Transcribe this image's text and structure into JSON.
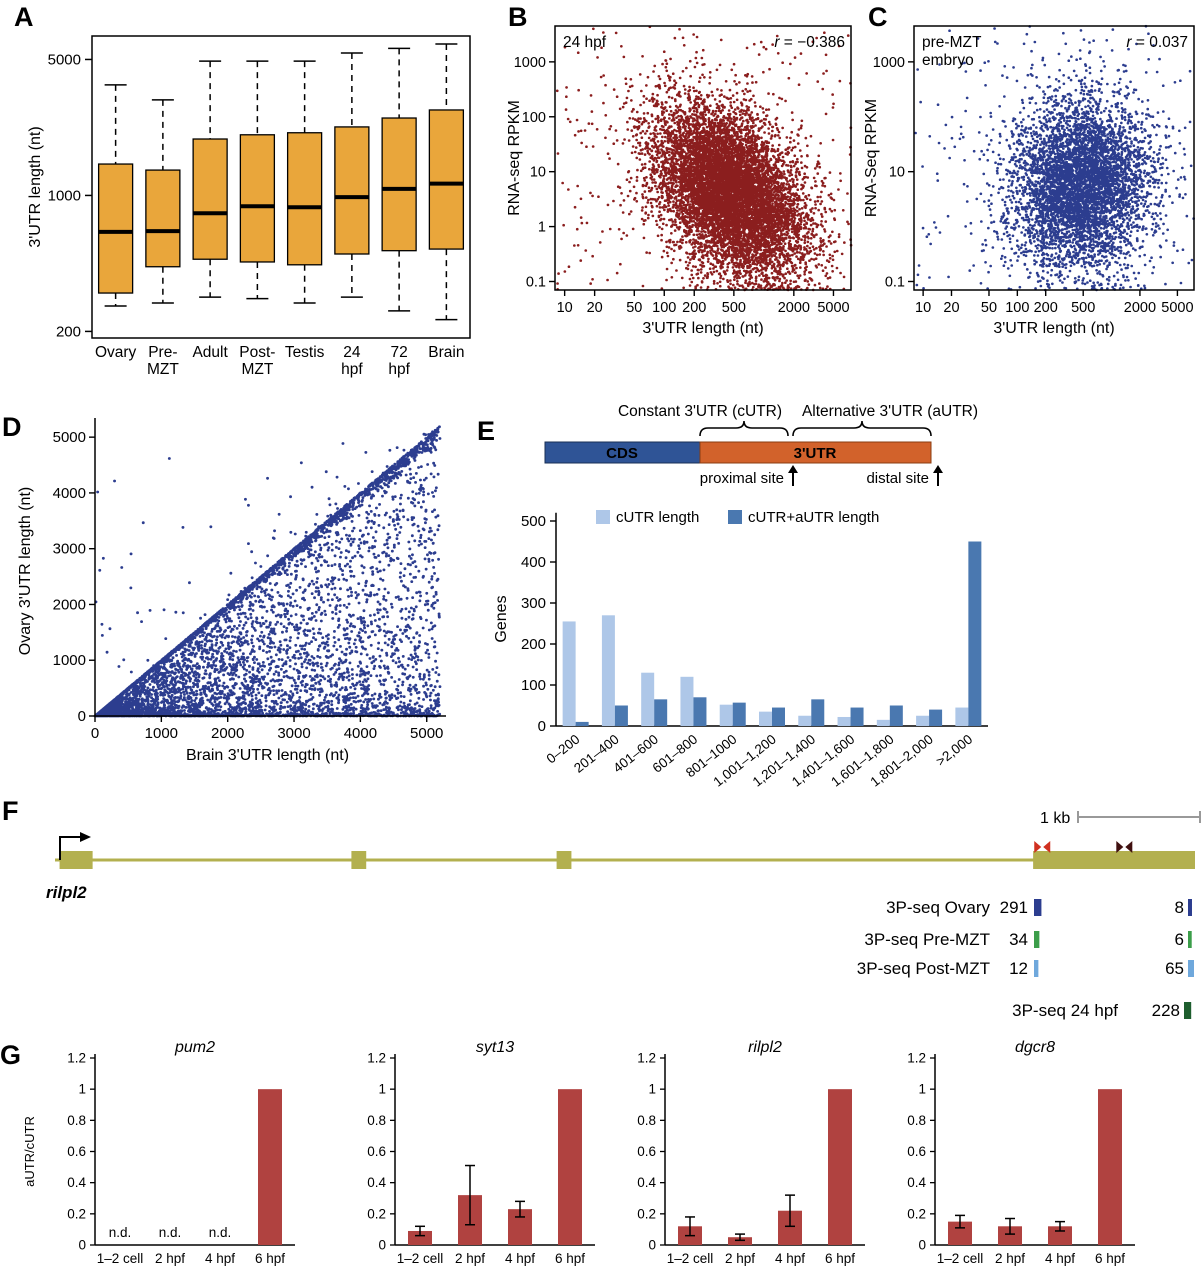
{
  "figure": {
    "background": "#ffffff",
    "panel_labels": [
      "A",
      "B",
      "C",
      "D",
      "E",
      "F",
      "G"
    ]
  },
  "chart_data": [
    {
      "id": "A",
      "type": "boxplot",
      "ylabel": "3'UTR length (nt)",
      "yscale": "log",
      "ylim": [
        185,
        6600
      ],
      "yticks": [
        200,
        1000,
        5000
      ],
      "box_color": "#E9A63B",
      "categories": [
        [
          "Ovary"
        ],
        [
          "Pre-",
          "MZT"
        ],
        [
          "Adult"
        ],
        [
          "Post-",
          "MZT"
        ],
        [
          "Testis"
        ],
        [
          "24",
          "hpf"
        ],
        [
          "72",
          "hpf"
        ],
        [
          "Brain"
        ]
      ],
      "boxes": [
        {
          "whislo": 270,
          "q1": 315,
          "med": 650,
          "q3": 1450,
          "whishi": 3700
        },
        {
          "whislo": 280,
          "q1": 430,
          "med": 655,
          "q3": 1350,
          "whishi": 3100
        },
        {
          "whislo": 300,
          "q1": 470,
          "med": 810,
          "q3": 1950,
          "whishi": 4900
        },
        {
          "whislo": 295,
          "q1": 455,
          "med": 880,
          "q3": 2050,
          "whishi": 4900
        },
        {
          "whislo": 280,
          "q1": 440,
          "med": 870,
          "q3": 2100,
          "whishi": 4900
        },
        {
          "whislo": 300,
          "q1": 500,
          "med": 980,
          "q3": 2250,
          "whishi": 5400
        },
        {
          "whislo": 255,
          "q1": 520,
          "med": 1080,
          "q3": 2500,
          "whishi": 5700
        },
        {
          "whislo": 230,
          "q1": 530,
          "med": 1150,
          "q3": 2750,
          "whishi": 6000
        }
      ]
    },
    {
      "id": "B",
      "type": "scatter",
      "annotation_lines": [
        "24 hpf"
      ],
      "r_var": "r",
      "r_value": " = −0.386",
      "xlabel": "3'UTR length (nt)",
      "ylabel": "RNA-seq RPKM",
      "xscale": "log",
      "yscale": "log",
      "xlim": [
        8,
        7500
      ],
      "ylim": [
        0.07,
        4500
      ],
      "xticks": [
        10,
        20,
        50,
        100,
        200,
        500,
        2000,
        5000
      ],
      "yticks": [
        0.1,
        1,
        10,
        100,
        1000
      ],
      "point_color": "#8B1E1E",
      "n_points": 9000,
      "distribution": {
        "log10x_mean": 2.67,
        "log10x_sd": 0.37,
        "log10y_mean": 0.62,
        "log10y_sd": 0.78,
        "r": -0.386,
        "seed": 7
      }
    },
    {
      "id": "C",
      "type": "scatter",
      "annotation_lines": [
        "pre-MZT",
        "embryo"
      ],
      "r_var": "r",
      "r_value": " = 0.037",
      "xlabel": "3'UTR length (nt)",
      "ylabel": "RNA-Seq RPKM",
      "xscale": "log",
      "yscale": "log",
      "xlim": [
        8,
        7500
      ],
      "ylim": [
        0.07,
        4500
      ],
      "xticks": [
        10,
        20,
        50,
        100,
        200,
        500,
        2000,
        5000
      ],
      "yticks": [
        0.1,
        10,
        1000
      ],
      "point_color": "#2C3D8F",
      "n_points": 5500,
      "distribution": {
        "log10x_mean": 2.67,
        "log10x_sd": 0.37,
        "log10y_mean": 0.75,
        "log10y_sd": 0.78,
        "r": 0.037,
        "seed": 13
      }
    },
    {
      "id": "D",
      "type": "scatter",
      "xlabel": "Brain 3'UTR length (nt)",
      "ylabel": "Ovary 3'UTR length (nt)",
      "xlim": [
        0,
        5200
      ],
      "ylim": [
        0,
        5200
      ],
      "xticks": [
        0,
        1000,
        2000,
        3000,
        4000,
        5000
      ],
      "yticks": [
        0,
        1000,
        2000,
        3000,
        4000,
        5000
      ],
      "point_color": "#2C3D8F",
      "n_points": 6500,
      "seed": 21,
      "trend": "points lie on or below the y = x diagonal; ovary 3'UTRs are shorter than or equal to brain 3'UTRs, dense mass near origin and along diagonal"
    },
    {
      "id": "E_diagram",
      "type": "diagram",
      "cutr_label": "Constant 3'UTR (cUTR)",
      "autr_label": "Alternative 3'UTR (aUTR)",
      "cds_text": "CDS",
      "utr_text": "3'UTR",
      "proximal_label": "proximal site",
      "distal_label": "distal site",
      "cds_color": "#2F5496",
      "utr_color": "#D2622B"
    },
    {
      "id": "E",
      "type": "bar",
      "ylabel": "Genes",
      "ylim": [
        0,
        500
      ],
      "yticks": [
        0,
        100,
        200,
        300,
        400,
        500
      ],
      "categories": [
        "0–200",
        "201–400",
        "401–600",
        "601–800",
        "801–1000",
        "1,001–1,200",
        "1,201–1,400",
        "1,401–1,600",
        "1,601–1,800",
        "1,801–2,000",
        ">2,000"
      ],
      "series": [
        {
          "name": "cUTR length",
          "color": "#AEC7E8",
          "values": [
            255,
            270,
            130,
            120,
            52,
            35,
            25,
            22,
            15,
            25,
            45
          ]
        },
        {
          "name": "cUTR+aUTR length",
          "color": "#4A78B0",
          "values": [
            10,
            50,
            65,
            70,
            57,
            45,
            65,
            45,
            50,
            40,
            450
          ]
        }
      ]
    },
    {
      "id": "F",
      "type": "gene-model",
      "gene_name": "rilpl2",
      "scale_label": "1 kb",
      "gene_color": "#B3B04F",
      "gene_name_color": "#8F8C2E",
      "exons": [
        [
          0.004,
          0.033
        ],
        [
          0.26,
          0.273
        ],
        [
          0.44,
          0.453
        ],
        [
          0.858,
          1.0
        ]
      ],
      "site_markers": [
        {
          "pos": 0.866,
          "color": "#D03020"
        },
        {
          "pos": 0.938,
          "color": "#401010"
        }
      ],
      "tracks": [
        {
          "label": "3P-seq Ovary",
          "color": "#2C3D8F",
          "left_count": "291",
          "right_count": "8"
        },
        {
          "label": "3P-seq Pre-MZT",
          "color": "#3C9E4A",
          "left_count": "34",
          "right_count": "6"
        },
        {
          "label": "3P-seq Post-MZT",
          "color": "#6FA8DC",
          "left_count": "12",
          "right_count": "65"
        },
        {
          "label": "3P-seq 24 hpf",
          "color": "#1E5E2E",
          "left_count": null,
          "right_count": "228"
        }
      ]
    },
    {
      "id": "G",
      "type": "bar-mini",
      "shared_ylabel": "aUTR/cUTR",
      "categories": [
        "1–2 cell",
        "2 hpf",
        "4 hpf",
        "6 hpf"
      ],
      "ylim": [
        0,
        1.2
      ],
      "yticks": [
        0,
        0.2,
        0.4,
        0.6,
        0.8,
        1,
        1.2
      ],
      "ytick_labels": [
        "0",
        "0.2",
        "0.4",
        "0.6",
        "0.8",
        "1",
        "1.2"
      ],
      "bar_color": "#B04240",
      "nd_label": "n.d.",
      "charts": [
        {
          "title": "pum2",
          "values": [
            null,
            null,
            null,
            1
          ],
          "errors": [
            0,
            0,
            0,
            0
          ]
        },
        {
          "title": "syt13",
          "values": [
            0.09,
            0.32,
            0.23,
            1
          ],
          "errors": [
            0.03,
            0.19,
            0.05,
            0
          ]
        },
        {
          "title": "rilpl2",
          "values": [
            0.12,
            0.05,
            0.22,
            1
          ],
          "errors": [
            0.06,
            0.02,
            0.1,
            0
          ]
        },
        {
          "title": "dgcr8",
          "values": [
            0.15,
            0.12,
            0.12,
            1
          ],
          "errors": [
            0.04,
            0.05,
            0.03,
            0
          ]
        }
      ]
    }
  ]
}
